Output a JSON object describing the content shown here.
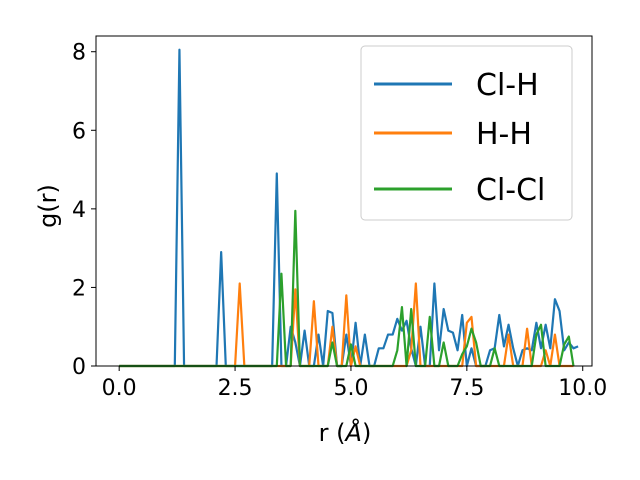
{
  "chart_data": {
    "type": "line",
    "title": "",
    "xlabel_text": "r (",
    "xlabel_unit": "Å",
    "xlabel_close": ")",
    "ylabel": "g(r)",
    "xlim": [
      -0.5,
      10.2
    ],
    "ylim": [
      0,
      8.4
    ],
    "xticks": [
      0.0,
      2.5,
      5.0,
      7.5,
      10.0
    ],
    "xtick_labels": [
      "0.0",
      "2.5",
      "5.0",
      "7.5",
      "10.0"
    ],
    "yticks": [
      0,
      2,
      4,
      6,
      8
    ],
    "ytick_labels": [
      "0",
      "2",
      "4",
      "6",
      "8"
    ],
    "grid": false,
    "legend_position": "top-right",
    "series": [
      {
        "name": "Cl-H",
        "color": "#1f77b4",
        "x": [
          0,
          0.1,
          0.2,
          0.3,
          0.4,
          0.5,
          0.6,
          0.7,
          0.8,
          0.9,
          1.0,
          1.1,
          1.2,
          1.3,
          1.4,
          1.5,
          1.6,
          1.7,
          1.8,
          1.9,
          2.0,
          2.1,
          2.2,
          2.3,
          2.4,
          2.5,
          2.6,
          2.7,
          2.8,
          2.9,
          3.0,
          3.1,
          3.2,
          3.3,
          3.4,
          3.5,
          3.6,
          3.7,
          3.8,
          3.9,
          4.0,
          4.1,
          4.2,
          4.3,
          4.4,
          4.5,
          4.6,
          4.7,
          4.8,
          4.9,
          5.0,
          5.1,
          5.2,
          5.3,
          5.4,
          5.5,
          5.6,
          5.7,
          5.8,
          5.9,
          6.0,
          6.1,
          6.2,
          6.3,
          6.4,
          6.5,
          6.6,
          6.7,
          6.8,
          6.9,
          7.0,
          7.1,
          7.2,
          7.3,
          7.4,
          7.5,
          7.6,
          7.7,
          7.8,
          7.9,
          8.0,
          8.1,
          8.2,
          8.3,
          8.4,
          8.5,
          8.6,
          8.7,
          8.8,
          8.9,
          9.0,
          9.1,
          9.2,
          9.3,
          9.4,
          9.5,
          9.6,
          9.7,
          9.8,
          9.9
        ],
        "y": [
          0,
          0,
          0,
          0,
          0,
          0,
          0,
          0,
          0,
          0,
          0,
          0,
          0,
          8.05,
          0,
          0,
          0,
          0,
          0,
          0,
          0,
          0,
          2.9,
          0,
          0,
          0,
          0,
          0,
          0,
          0,
          0,
          0,
          0,
          0,
          4.9,
          0,
          0,
          1.0,
          0.6,
          0,
          0.9,
          0,
          0,
          0.8,
          0,
          1.4,
          1.35,
          0,
          0,
          0.8,
          0,
          1.1,
          0,
          0.8,
          0,
          0,
          0.45,
          0.45,
          0.8,
          0.8,
          1.2,
          0.9,
          1.15,
          0.45,
          0,
          1.0,
          0,
          0,
          2.1,
          0.4,
          1.45,
          0.9,
          0.85,
          0.4,
          1.3,
          0,
          0.45,
          0,
          0,
          0,
          0.4,
          0.45,
          1.3,
          0.5,
          1.05,
          0.45,
          0,
          0.4,
          0.45,
          0.4,
          1.1,
          0.45,
          1.05,
          0.45,
          1.7,
          1.4,
          0.4,
          0.6,
          0.45,
          0.5
        ]
      },
      {
        "name": "H-H",
        "color": "#ff7f0e",
        "x": [
          0,
          0.1,
          0.2,
          0.3,
          0.4,
          0.5,
          0.6,
          0.7,
          0.8,
          0.9,
          1.0,
          1.1,
          1.2,
          1.3,
          1.4,
          1.5,
          1.6,
          1.7,
          1.8,
          1.9,
          2.0,
          2.1,
          2.2,
          2.3,
          2.4,
          2.5,
          2.6,
          2.7,
          2.8,
          2.9,
          3.0,
          3.1,
          3.2,
          3.3,
          3.4,
          3.5,
          3.6,
          3.7,
          3.8,
          3.9,
          4.0,
          4.1,
          4.2,
          4.3,
          4.4,
          4.5,
          4.6,
          4.7,
          4.8,
          4.9,
          5.0,
          5.1,
          5.2,
          5.3,
          5.4,
          5.5,
          5.6,
          5.7,
          5.8,
          5.9,
          6.0,
          6.1,
          6.2,
          6.3,
          6.4,
          6.5,
          6.6,
          6.7,
          6.8,
          6.9,
          7.0,
          7.1,
          7.2,
          7.3,
          7.4,
          7.5,
          7.6,
          7.7,
          7.8,
          7.9,
          8.0,
          8.1,
          8.2,
          8.3,
          8.4,
          8.5,
          8.6,
          8.7,
          8.8,
          8.9,
          9.0,
          9.1,
          9.2,
          9.3,
          9.4,
          9.5,
          9.6,
          9.7,
          9.8
        ],
        "y": [
          0,
          0,
          0,
          0,
          0,
          0,
          0,
          0,
          0,
          0,
          0,
          0,
          0,
          0,
          0,
          0,
          0,
          0,
          0,
          0,
          0,
          0,
          0,
          0,
          0,
          0,
          2.1,
          0,
          0,
          0,
          0,
          0,
          0,
          0,
          0,
          0,
          0,
          0,
          1.95,
          0,
          0,
          0,
          1.65,
          0,
          0,
          0,
          1.0,
          0,
          0,
          1.8,
          0,
          0.5,
          0,
          0,
          0,
          0,
          0,
          0,
          0,
          0,
          0,
          0,
          0,
          0.4,
          2.1,
          0,
          0,
          0,
          0,
          0,
          0,
          0,
          0,
          0,
          0,
          1.1,
          1.25,
          0,
          0,
          0,
          0,
          0,
          0,
          0,
          0.8,
          0,
          0,
          0,
          0.95,
          0,
          0,
          0,
          0.4,
          0,
          0.8,
          0,
          0,
          0,
          0
        ]
      },
      {
        "name": "Cl-Cl",
        "color": "#2ca02c",
        "x": [
          0,
          0.1,
          0.2,
          0.3,
          0.4,
          0.5,
          0.6,
          0.7,
          0.8,
          0.9,
          1.0,
          1.1,
          1.2,
          1.3,
          1.4,
          1.5,
          1.6,
          1.7,
          1.8,
          1.9,
          2.0,
          2.1,
          2.2,
          2.3,
          2.4,
          2.5,
          2.6,
          2.7,
          2.8,
          2.9,
          3.0,
          3.1,
          3.2,
          3.3,
          3.4,
          3.5,
          3.6,
          3.7,
          3.8,
          3.9,
          4.0,
          4.1,
          4.2,
          4.3,
          4.4,
          4.5,
          4.6,
          4.7,
          4.8,
          4.9,
          5.0,
          5.1,
          5.2,
          5.3,
          5.4,
          5.5,
          5.6,
          5.7,
          5.8,
          5.9,
          6.0,
          6.1,
          6.2,
          6.3,
          6.4,
          6.5,
          6.6,
          6.7,
          6.8,
          6.9,
          7.0,
          7.1,
          7.2,
          7.3,
          7.4,
          7.5,
          7.6,
          7.7,
          7.8,
          7.9,
          8.0,
          8.1,
          8.2,
          8.3,
          8.4,
          8.5,
          8.6,
          8.7,
          8.8,
          8.9,
          9.0,
          9.1,
          9.2,
          9.3,
          9.4,
          9.5,
          9.6,
          9.7,
          9.8
        ],
        "y": [
          0,
          0,
          0,
          0,
          0,
          0,
          0,
          0,
          0,
          0,
          0,
          0,
          0,
          0,
          0,
          0,
          0,
          0,
          0,
          0,
          0,
          0,
          0,
          0,
          0,
          0,
          0,
          0,
          0,
          0,
          0,
          0,
          0,
          0,
          0,
          2.35,
          0,
          0,
          3.95,
          0,
          0,
          0,
          0,
          0,
          0,
          0,
          0.6,
          0,
          0,
          0,
          0.55,
          0,
          0,
          0,
          0,
          0,
          0,
          0,
          0,
          0,
          0.4,
          1.5,
          0,
          1.45,
          0,
          0,
          0,
          1.25,
          0,
          0,
          0.6,
          0,
          0,
          0,
          0.3,
          0.5,
          0.95,
          0.6,
          0,
          0,
          0,
          0.45,
          0,
          0,
          0,
          0,
          0,
          0,
          0,
          0,
          0.8,
          1.05,
          0,
          0,
          0,
          0,
          0.55,
          0.75,
          0
        ]
      }
    ]
  }
}
